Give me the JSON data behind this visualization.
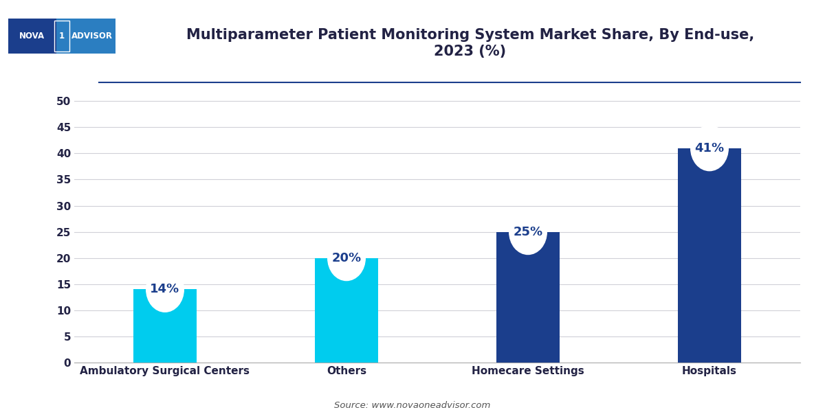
{
  "title": "Multiparameter Patient Monitoring System Market Share, By End-use,\n2023 (%)",
  "categories": [
    "Ambulatory Surgical Centers",
    "Others",
    "Homecare Settings",
    "Hospitals"
  ],
  "values": [
    14,
    20,
    25,
    41
  ],
  "labels": [
    "14%",
    "20%",
    "25%",
    "41%"
  ],
  "bar_colors": [
    "#00CCEE",
    "#00CCEE",
    "#1B3E8C",
    "#1B3E8C"
  ],
  "ylim": [
    0,
    52
  ],
  "yticks": [
    0,
    5,
    10,
    15,
    20,
    25,
    30,
    35,
    40,
    45,
    50
  ],
  "background_color": "#FFFFFF",
  "plot_bg_color": "#FFFFFF",
  "grid_color": "#D0D0D8",
  "source_text": "Source: www.novaoneadvisor.com",
  "title_fontsize": 15,
  "tick_fontsize": 11,
  "label_fontsize": 13,
  "logo_bg_dark": "#1B3E8C",
  "logo_bg_light": "#2B7EC1",
  "circle_fill": "#FFFFFF",
  "separator_line_color": "#1B3E8C",
  "bar_width": 0.35
}
